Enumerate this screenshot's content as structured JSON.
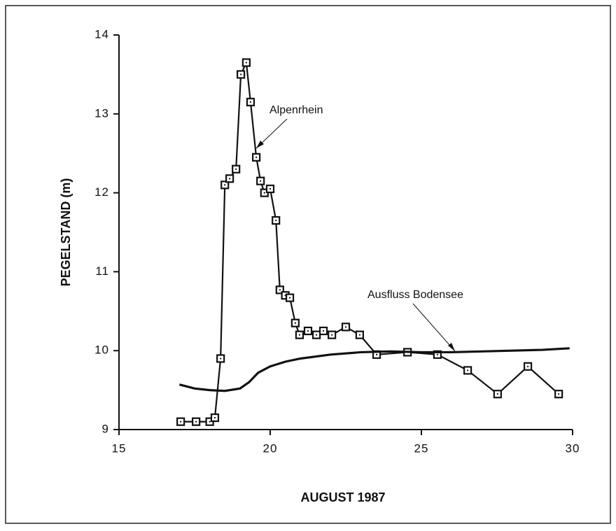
{
  "chart_data": {
    "type": "line",
    "xlabel": "AUGUST  1987",
    "ylabel": "PEGELSTAND  (m)",
    "xlim": [
      15,
      30
    ],
    "xticks": [
      15,
      20,
      25,
      30
    ],
    "ylim": [
      9,
      14
    ],
    "yticks": [
      9,
      10,
      11,
      12,
      13,
      14
    ],
    "series": [
      {
        "name": "Alpenrhein",
        "color": "#111111",
        "markers": true,
        "x": [
          17.04,
          17.55,
          18.0,
          18.17,
          18.36,
          18.5,
          18.66,
          18.87,
          19.03,
          19.21,
          19.35,
          19.54,
          19.68,
          19.81,
          20.0,
          20.19,
          20.32,
          20.5,
          20.65,
          20.83,
          20.97,
          21.25,
          21.53,
          21.76,
          22.04,
          22.5,
          22.96,
          23.52,
          24.54,
          25.53,
          26.53,
          27.52,
          28.52,
          29.54
        ],
        "values": [
          9.1,
          9.1,
          9.1,
          9.15,
          9.9,
          12.1,
          12.18,
          12.3,
          13.5,
          13.65,
          13.15,
          12.45,
          12.15,
          12.0,
          12.05,
          11.65,
          10.77,
          10.7,
          10.67,
          10.35,
          10.2,
          10.25,
          10.2,
          10.25,
          10.2,
          10.3,
          10.2,
          9.95,
          9.98,
          9.95,
          9.75,
          9.45,
          9.8,
          9.45
        ]
      },
      {
        "name": "Ausfluss Bodensee",
        "color": "#111111",
        "markers": false,
        "x": [
          17.0,
          17.5,
          18.0,
          18.5,
          19.0,
          19.3,
          19.6,
          20.0,
          20.5,
          21.0,
          22.0,
          23.0,
          24.0,
          25.0,
          26.0,
          27.0,
          28.0,
          29.0,
          29.9
        ],
        "values": [
          9.57,
          9.52,
          9.5,
          9.49,
          9.52,
          9.6,
          9.72,
          9.8,
          9.86,
          9.9,
          9.95,
          9.98,
          9.99,
          9.98,
          9.98,
          9.99,
          10.0,
          10.01,
          10.03
        ]
      }
    ]
  }
}
